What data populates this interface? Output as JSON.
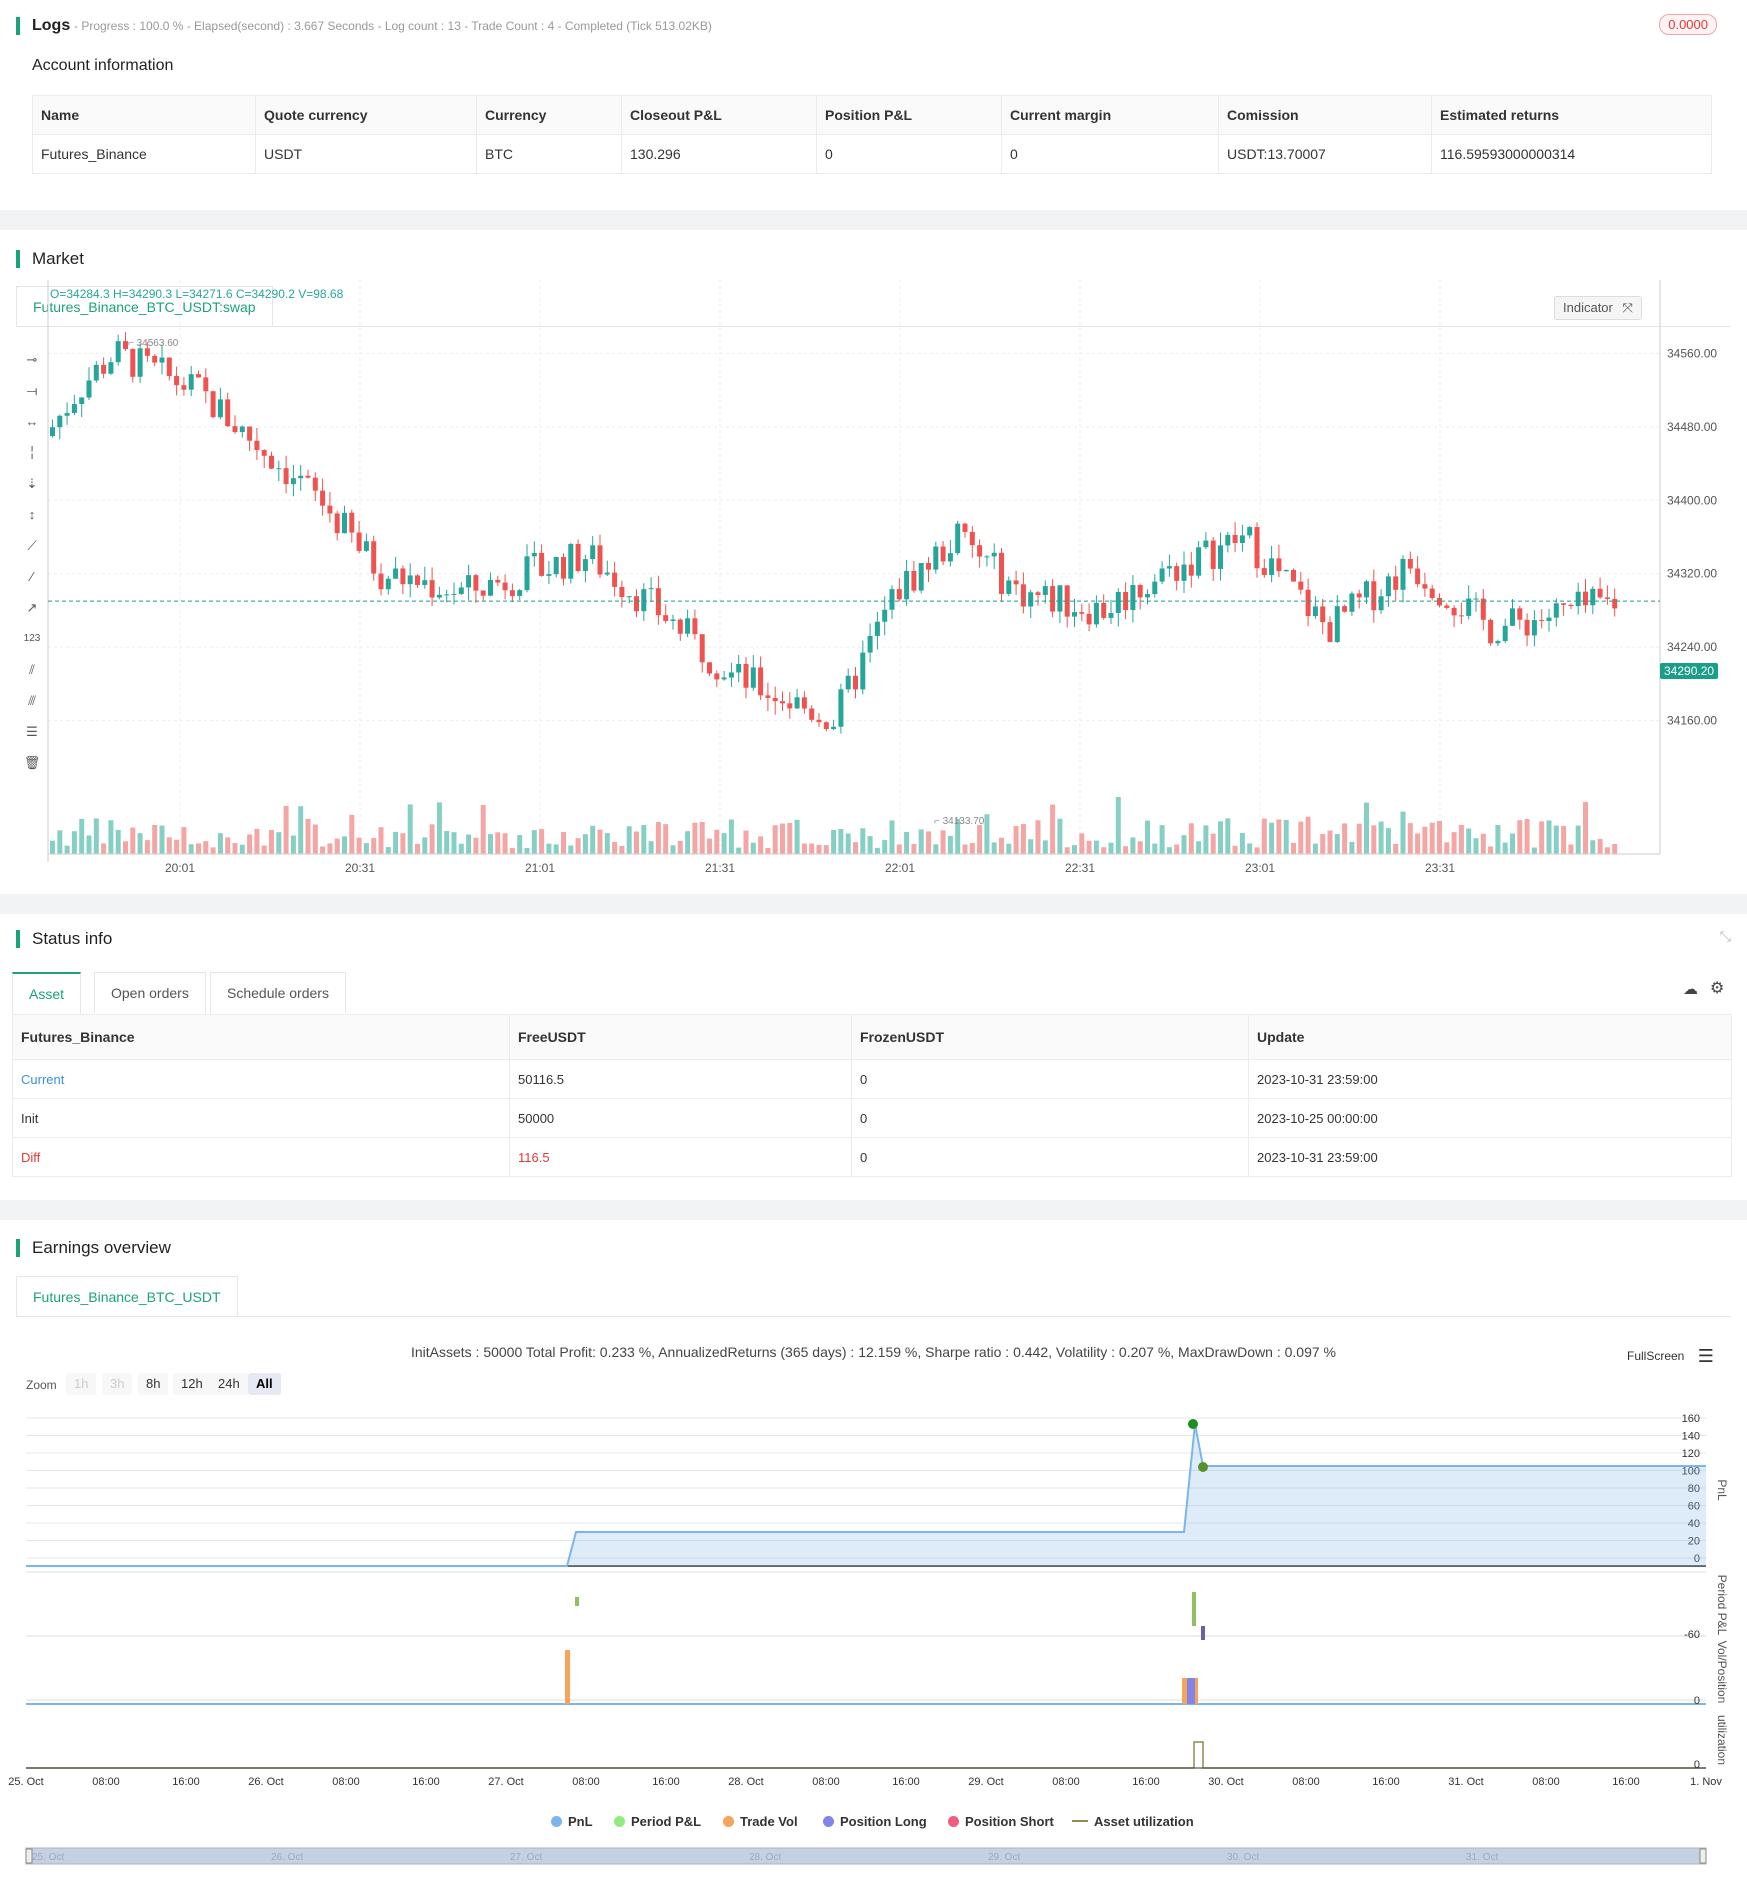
{
  "logs": {
    "title": "Logs",
    "summary": "- Progress : 100.0 % - Elapsed(second) : 3.667  Seconds - Log count : 13 - Trade Count : 4 - Completed (Tick 513.02KB)",
    "badge": "0.0000",
    "account_title": "Account information",
    "columns": [
      "Name",
      "Quote currency",
      "Currency",
      "Closeout P&L",
      "Position P&L",
      "Current margin",
      "Comission",
      "Estimated returns"
    ],
    "row": [
      "Futures_Binance",
      "USDT",
      "BTC",
      "130.296",
      "0",
      "0",
      "USDT:13.70007",
      "116.59593000000314"
    ]
  },
  "market": {
    "title": "Market",
    "tab": "Futures_Binance_BTC_USDT:swap",
    "ohlc": "O=34284.3 H=34290.3 L=34271.6 C=34290.2 V=98.68",
    "indicator_label": "Indicator",
    "high_label": "34563.60",
    "low_label": "34133.70",
    "last_price": "34290.20",
    "y_ticks": [
      "34560.00",
      "34480.00",
      "34400.00",
      "34320.00",
      "34240.00",
      "34160.00"
    ],
    "x_ticks": [
      "20:01",
      "20:31",
      "21:01",
      "21:31",
      "22:01",
      "22:31",
      "23:01",
      "23:31"
    ],
    "colors": {
      "up": "#26a69a",
      "down": "#ef5350",
      "up_vol": "#86cfc4",
      "down_vol": "#f3a6a4"
    }
  },
  "status": {
    "title": "Status info",
    "tabs": [
      "Asset",
      "Open orders",
      "Schedule orders"
    ],
    "columns": [
      "Futures_Binance",
      "FreeUSDT",
      "FrozenUSDT",
      "Update"
    ],
    "rows": [
      [
        "Current",
        "50116.5",
        "0",
        "2023-10-31 23:59:00"
      ],
      [
        "Init",
        "50000",
        "0",
        "2023-10-25 00:00:00"
      ],
      [
        "Diff",
        "116.5",
        "0",
        "2023-10-31 23:59:00"
      ]
    ]
  },
  "earnings": {
    "title": "Earnings overview",
    "tab": "Futures_Binance_BTC_USDT",
    "summary": "InitAssets : 50000 Total Profit: 0.233 %, AnnualizedReturns (365 days) : 12.159 %, Sharpe ratio : 0.442, Volatility : 0.207 %, MaxDrawDown : 0.097 %",
    "fullscreen": "FullScreen",
    "zoom_label": "Zoom",
    "zoom_buttons": [
      "1h",
      "3h",
      "8h",
      "12h",
      "24h",
      "All"
    ],
    "pnl_ticks": [
      "160",
      "140",
      "120",
      "100",
      "80",
      "60",
      "40",
      "20",
      "0"
    ],
    "axis_titles": [
      "PnL",
      "Period P&L",
      "Vol/Position",
      "utilization"
    ],
    "period_tick": "-60",
    "vol_tick": "0",
    "util_tick": "0",
    "x_ticks": [
      "25. Oct",
      "08:00",
      "16:00",
      "26. Oct",
      "08:00",
      "16:00",
      "27. Oct",
      "08:00",
      "16:00",
      "28. Oct",
      "08:00",
      "16:00",
      "29. Oct",
      "08:00",
      "16:00",
      "30. Oct",
      "08:00",
      "16:00",
      "31. Oct",
      "08:00",
      "16:00",
      "1. Nov"
    ],
    "navigator_ticks": [
      "25. Oct",
      "26. Oct",
      "27. Oct",
      "28. Oct",
      "29. Oct",
      "30. Oct",
      "31. Oct"
    ],
    "legend": [
      {
        "label": "PnL",
        "color": "#7cb5ec"
      },
      {
        "label": "Period P&L",
        "color": "#90ed7d"
      },
      {
        "label": "Trade Vol",
        "color": "#f7a35c"
      },
      {
        "label": "Position Long",
        "color": "#8085e9"
      },
      {
        "label": "Position Short",
        "color": "#f15c80"
      },
      {
        "label": "Asset utilization",
        "color": "#8d8a55"
      }
    ]
  }
}
